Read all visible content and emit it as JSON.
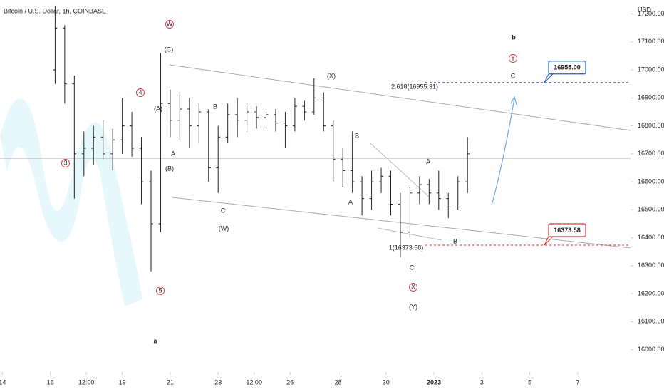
{
  "chart_data": {
    "type": "ohlc",
    "title": "Bitcoin / U.S. Dollar, 1h, COINBASE",
    "y_axis_label": "USD",
    "color": "#222222",
    "x": [
      16.2,
      16.6,
      17.0,
      17.4,
      17.8,
      18.2,
      18.6,
      19.0,
      19.4,
      19.8,
      20.2,
      20.6,
      21.0,
      21.4,
      21.8,
      22.2,
      22.6,
      23.0,
      23.4,
      23.8,
      24.2,
      24.6,
      25.0,
      25.4,
      25.8,
      26.2,
      26.6,
      27.0,
      27.4,
      27.8,
      28.2,
      28.6,
      29.0,
      29.4,
      29.8,
      30.2,
      30.6,
      31.0,
      31.4,
      31.8,
      32.2,
      32.6,
      33.0,
      33.4
    ],
    "open": [
      17000,
      17150,
      16950,
      16700,
      16720,
      16760,
      16700,
      16750,
      16800,
      16720,
      16600,
      16450,
      16880,
      16820,
      16860,
      16800,
      16850,
      16650,
      16760,
      16840,
      16820,
      16850,
      16830,
      16840,
      16810,
      16800,
      16870,
      16850,
      16900,
      16800,
      16680,
      16640,
      16600,
      16540,
      16600,
      16620,
      16520,
      16420,
      16560,
      16590,
      16560,
      16540,
      16510,
      16600
    ],
    "high": [
      17230,
      17160,
      16980,
      16780,
      16800,
      16820,
      16790,
      16900,
      16850,
      16760,
      16640,
      17060,
      16930,
      16920,
      16900,
      16880,
      16860,
      16800,
      16880,
      16900,
      16880,
      16870,
      16860,
      16860,
      16850,
      16900,
      16890,
      16970,
      16920,
      16820,
      16720,
      16780,
      16620,
      16640,
      16650,
      16640,
      16560,
      16580,
      16620,
      16610,
      16640,
      16560,
      16620,
      16760
    ],
    "low": [
      16950,
      16880,
      16540,
      16620,
      16660,
      16680,
      16640,
      16700,
      16690,
      16520,
      16280,
      16420,
      16760,
      16750,
      16720,
      16740,
      16600,
      16560,
      16740,
      16760,
      16780,
      16790,
      16790,
      16780,
      16720,
      16780,
      16820,
      16840,
      16780,
      16600,
      16580,
      16560,
      16480,
      16500,
      16560,
      16480,
      16330,
      16400,
      16520,
      16520,
      16500,
      16470,
      16500,
      16560
    ],
    "close": [
      17150,
      16950,
      16700,
      16720,
      16760,
      16700,
      16750,
      16800,
      16720,
      16600,
      16450,
      16880,
      16820,
      16860,
      16800,
      16850,
      16650,
      16760,
      16840,
      16820,
      16850,
      16830,
      16840,
      16810,
      16800,
      16870,
      16850,
      16900,
      16800,
      16680,
      16640,
      16600,
      16540,
      16600,
      16620,
      16520,
      16420,
      16560,
      16590,
      16560,
      16540,
      16510,
      16600,
      16700
    ],
    "xlim": [
      13.9,
      40.2
    ],
    "xticks": [
      14,
      16,
      {
        "value": 17.5,
        "label": "12:00"
      },
      19,
      21,
      23,
      {
        "value": 24.5,
        "label": "12:00"
      },
      26,
      28,
      30,
      {
        "value": 32,
        "label": "2023"
      },
      {
        "value": 34,
        "label": "3"
      },
      {
        "value": 36,
        "label": "5"
      },
      {
        "value": 38,
        "label": "7"
      }
    ],
    "ylim": [
      15920,
      17250
    ],
    "yticks": [
      {
        "value": 16000,
        "label": "16000.00"
      },
      {
        "value": 16100,
        "label": "16100.00"
      },
      {
        "value": 16200,
        "label": "16200.00"
      },
      {
        "value": 16300,
        "label": "16300.00"
      },
      {
        "value": 16400,
        "label": "16400.00"
      },
      {
        "value": 16500,
        "label": "16500.00"
      },
      {
        "value": 16600,
        "label": "16600.00"
      },
      {
        "value": 16700,
        "label": "16700.00"
      },
      {
        "value": 16800,
        "label": "16800.00"
      },
      {
        "value": 16900,
        "label": "16900.00"
      },
      {
        "value": 17000,
        "label": "17000.00"
      },
      {
        "value": 17100,
        "label": "17100.00"
      },
      {
        "value": 17200,
        "label": "17200.00"
      }
    ],
    "levels": [
      {
        "value": 16955,
        "label": "16955.00",
        "color": "#1e5fd6"
      },
      {
        "value": 16373.58,
        "label": "16373.58",
        "color": "#e0323c"
      }
    ],
    "annotations": [
      {
        "text": "W",
        "color": "#e0323c",
        "circled": true
      },
      {
        "text": "4",
        "color": "#e0323c",
        "circled": true
      },
      {
        "text": "3",
        "color": "#e0323c",
        "circled": true
      },
      {
        "text": "5",
        "color": "#e0323c",
        "circled": true
      },
      {
        "text": "Y",
        "color": "#e0323c",
        "circled": true
      },
      {
        "text": "X",
        "color": "#e0323c",
        "circled": true
      },
      {
        "text": "(C)",
        "color": "#2e9a3a"
      },
      {
        "text": "(A)",
        "color": "#2e9a3a"
      },
      {
        "text": "(B)",
        "color": "#2e9a3a"
      },
      {
        "text": "(W)",
        "color": "#2e9a3a"
      },
      {
        "text": "(X)",
        "color": "#2e9a3a"
      },
      {
        "text": "(Y)",
        "color": "#2e9a3a"
      },
      {
        "text": "B",
        "color": "#8e24aa"
      },
      {
        "text": "A",
        "color": "#8e24aa"
      },
      {
        "text": "C",
        "color": "#8e24aa"
      },
      {
        "text": "B",
        "color": "#8e24aa"
      },
      {
        "text": "A",
        "color": "#8e24aa"
      },
      {
        "text": "A",
        "color": "#8e24aa"
      },
      {
        "text": "C",
        "color": "#8e24aa"
      },
      {
        "text": "B",
        "color": "#8e24aa"
      },
      {
        "text": "b",
        "color": "#1e5fd6"
      },
      {
        "text": "a",
        "color": "#1e5fd6"
      },
      {
        "text": "C",
        "color": "#555555"
      },
      {
        "text": "2.618(16955.31)",
        "color": "#1e5fd6"
      },
      {
        "text": "1(16373.58)",
        "color": "#e0323c"
      }
    ]
  }
}
